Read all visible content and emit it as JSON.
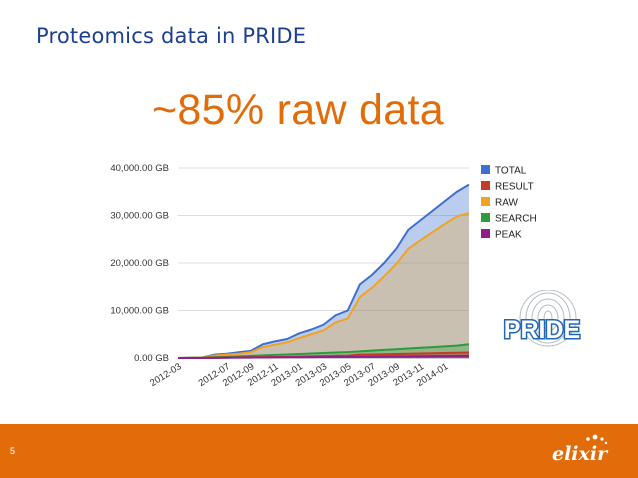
{
  "slide": {
    "title": "Proteomics data in PRIDE",
    "highlight": "~85% raw data",
    "page_number": "5"
  },
  "logos": {
    "pride_text": "PRIDE",
    "elixir_text": "elixir"
  },
  "colors": {
    "title": "#1d3f8f",
    "accent": "#e36c0a",
    "total": "#3d6fd1",
    "result": "#c33c27",
    "raw": "#f0a323",
    "search": "#2e9b3b",
    "peak": "#8f1f8f"
  },
  "chart_data": {
    "type": "area",
    "y_tick_labels": [
      "0.00 GB",
      "10,000.00 GB",
      "20,000.00 GB",
      "30,000.00 GB",
      "40,000.00 GB"
    ],
    "y_ticks": [
      0,
      10000,
      20000,
      30000,
      40000
    ],
    "ylim": [
      0,
      40000
    ],
    "x_tick_labels": [
      "2012-03",
      "2012-07",
      "2012-09",
      "2012-11",
      "2013-01",
      "2013-03",
      "2013-05",
      "2013-07",
      "2013-09",
      "2013-11",
      "2014-01"
    ],
    "x_tick_months": [
      0,
      4,
      6,
      8,
      10,
      12,
      14,
      16,
      18,
      20,
      22
    ],
    "x_months": [
      "2012-03",
      "2012-04",
      "2012-05",
      "2012-06",
      "2012-07",
      "2012-08",
      "2012-09",
      "2012-10",
      "2012-11",
      "2012-12",
      "2013-01",
      "2013-02",
      "2013-03",
      "2013-04",
      "2013-05",
      "2013-06",
      "2013-07",
      "2013-08",
      "2013-09",
      "2013-10",
      "2013-11",
      "2013-12",
      "2014-01",
      "2014-02",
      "2014-03"
    ],
    "grid": true,
    "legend_position": "right",
    "series": [
      {
        "name": "TOTAL",
        "color": "#3d6fd1",
        "values": [
          0,
          50,
          100,
          700,
          900,
          1200,
          1500,
          2900,
          3500,
          4000,
          5200,
          6000,
          7000,
          9000,
          10000,
          15500,
          17500,
          20000,
          23000,
          27000,
          29000,
          31000,
          33000,
          35000,
          36500
        ]
      },
      {
        "name": "RESULT",
        "color": "#c33c27",
        "values": [
          0,
          10,
          20,
          60,
          90,
          120,
          150,
          180,
          220,
          250,
          300,
          350,
          400,
          450,
          500,
          700,
          750,
          800,
          850,
          900,
          950,
          1000,
          1050,
          1100,
          1150
        ]
      },
      {
        "name": "RAW",
        "color": "#f0a323",
        "values": [
          0,
          40,
          80,
          500,
          700,
          900,
          1200,
          2300,
          2800,
          3300,
          4200,
          5000,
          5800,
          7500,
          8300,
          12800,
          14800,
          17200,
          19800,
          23000,
          24800,
          26500,
          28200,
          29800,
          30500
        ]
      },
      {
        "name": "SEARCH",
        "color": "#2e9b3b",
        "values": [
          0,
          20,
          50,
          150,
          250,
          350,
          450,
          550,
          650,
          750,
          850,
          950,
          1050,
          1150,
          1250,
          1400,
          1550,
          1700,
          1850,
          2000,
          2150,
          2300,
          2450,
          2600,
          2900
        ]
      },
      {
        "name": "PEAK",
        "color": "#8f1f8f",
        "values": [
          0,
          5,
          10,
          30,
          50,
          70,
          90,
          110,
          130,
          150,
          170,
          190,
          210,
          230,
          250,
          270,
          290,
          310,
          330,
          350,
          370,
          390,
          410,
          430,
          450
        ]
      }
    ]
  }
}
